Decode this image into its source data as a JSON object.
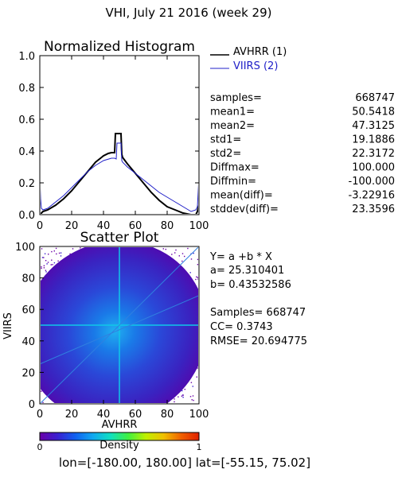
{
  "page_title": "VHI,  July 21 2016 (week 29)",
  "colors": {
    "avhrr": "#000000",
    "viirs": "#2020c8",
    "regression": "#3080e0"
  },
  "stats": [
    {
      "label": "samples=",
      "value": "668747"
    },
    {
      "label": "mean1=",
      "value": "50.5418"
    },
    {
      "label": "mean2=",
      "value": "47.3125"
    },
    {
      "label": "std1=",
      "value": "19.1886"
    },
    {
      "label": "std2=",
      "value": "22.3172"
    },
    {
      "label": "Diffmax=",
      "value": "100.000"
    },
    {
      "label": "Diffmin=",
      "value": "-100.000"
    },
    {
      "label": "mean(diff)=",
      "value": "-3.22916"
    },
    {
      "label": "stddev(diff)=",
      "value": "23.3596"
    }
  ],
  "regression": {
    "equation": "Y= a +b * X",
    "a_text": "a= 25.310401",
    "b_text": "b= 0.43532586",
    "samples_text": "Samples= 668747",
    "cc_text": "CC=  0.3743",
    "rmse_text": "RMSE= 20.694775"
  },
  "colorbar": {
    "label": "Density",
    "min_label": "0",
    "max_label": "1",
    "stops": [
      "#6a00a8",
      "#3a20d0",
      "#1060f0",
      "#10a8f0",
      "#10e0c0",
      "#40f040",
      "#c0f000",
      "#f0c000",
      "#f06000",
      "#e02000"
    ]
  },
  "footer": "lon=[-180.00, 180.00] lat=[-55.15, 75.02]",
  "chart_data": [
    {
      "type": "line",
      "title": "Normalized Histogram",
      "xlabel": "",
      "ylabel": "",
      "xlim": [
        0,
        100
      ],
      "ylim": [
        0,
        1.0
      ],
      "x_ticks": [
        "0",
        "20",
        "40",
        "60",
        "80",
        "100"
      ],
      "y_ticks": [
        "0.0",
        "0.2",
        "0.4",
        "0.6",
        "0.8",
        "1.0"
      ],
      "legend_position": "right",
      "series": [
        {
          "name": "AVHRR (1)",
          "x": [
            0,
            1,
            2,
            5,
            10,
            15,
            20,
            25,
            30,
            35,
            40,
            43,
            45,
            47,
            47.5,
            48,
            49,
            50,
            51,
            51.5,
            52,
            55,
            60,
            65,
            70,
            75,
            80,
            85,
            90,
            95,
            98,
            99,
            100
          ],
          "y": [
            0.0,
            0.01,
            0.02,
            0.03,
            0.06,
            0.1,
            0.15,
            0.21,
            0.27,
            0.33,
            0.37,
            0.385,
            0.39,
            0.39,
            0.51,
            0.51,
            0.51,
            0.51,
            0.51,
            0.38,
            0.36,
            0.32,
            0.26,
            0.2,
            0.14,
            0.09,
            0.05,
            0.03,
            0.01,
            0.0,
            0.0,
            0.02,
            0.06
          ]
        },
        {
          "name": "VIIRS (2)",
          "x": [
            0,
            0.5,
            1,
            2,
            5,
            10,
            15,
            20,
            25,
            30,
            35,
            40,
            45,
            47,
            48,
            48.5,
            49,
            50,
            51,
            51.5,
            52,
            55,
            60,
            65,
            70,
            75,
            80,
            85,
            90,
            95,
            98,
            99,
            100
          ],
          "y": [
            0.24,
            0.1,
            0.04,
            0.03,
            0.04,
            0.08,
            0.12,
            0.17,
            0.22,
            0.27,
            0.31,
            0.34,
            0.355,
            0.355,
            0.35,
            0.45,
            0.45,
            0.45,
            0.45,
            0.34,
            0.33,
            0.3,
            0.26,
            0.22,
            0.18,
            0.14,
            0.11,
            0.08,
            0.05,
            0.02,
            0.03,
            0.05,
            0.24
          ]
        }
      ]
    },
    {
      "type": "heatmap",
      "title": "Scatter Plot",
      "xlabel": "AVHRR",
      "ylabel": "VIIRS",
      "xlim": [
        0,
        100
      ],
      "ylim": [
        0,
        100
      ],
      "x_ticks": [
        "0",
        "20",
        "40",
        "60",
        "80",
        "100"
      ],
      "y_ticks": [
        "0",
        "20",
        "40",
        "60",
        "80",
        "100"
      ],
      "density_center": [
        47,
        46
      ],
      "regression_line": {
        "intercept": 25.310401,
        "slope": 0.43532586
      }
    }
  ]
}
